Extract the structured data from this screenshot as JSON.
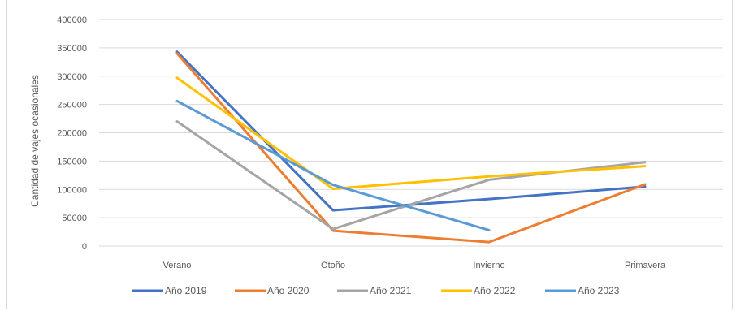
{
  "chart_data": {
    "type": "line",
    "title": "",
    "xlabel": "",
    "ylabel": "Cantidad de vajes ocasionales",
    "categories": [
      "Verano",
      "Otoño",
      "Invierno",
      "Primavera"
    ],
    "ylim": [
      0,
      400000
    ],
    "y_ticks": [
      0,
      50000,
      100000,
      150000,
      200000,
      250000,
      300000,
      350000,
      400000
    ],
    "y_tick_labels": [
      "0",
      "50000",
      "100000",
      "150000",
      "200000",
      "250000",
      "300000",
      "350000",
      "400000"
    ],
    "grid": true,
    "legend_position": "bottom",
    "series": [
      {
        "name": "Año 2019",
        "color": "#4472c4",
        "values": [
          343000,
          63000,
          83000,
          105000
        ]
      },
      {
        "name": "Año 2020",
        "color": "#ed7d31",
        "values": [
          340000,
          27000,
          7000,
          109000
        ]
      },
      {
        "name": "Año 2021",
        "color": "#a5a5a5",
        "values": [
          220000,
          30000,
          117000,
          148000
        ]
      },
      {
        "name": "Año 2022",
        "color": "#ffc000",
        "values": [
          297000,
          101000,
          123000,
          141000
        ]
      },
      {
        "name": "Año 2023",
        "color": "#5b9bd5",
        "values": [
          256000,
          108000,
          28000,
          null
        ]
      }
    ]
  }
}
